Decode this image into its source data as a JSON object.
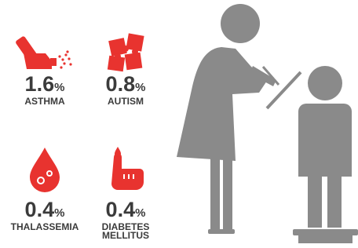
{
  "items": [
    {
      "value": "1.6",
      "unit": "%",
      "label": [
        "ASTHMA"
      ]
    },
    {
      "value": "0.8",
      "unit": "%",
      "label": [
        "AUTISM"
      ]
    },
    {
      "value": "0.4",
      "unit": "%",
      "label": [
        "THALASSEMIA"
      ]
    },
    {
      "value": "0.4",
      "unit": "%",
      "label": [
        "DIABETES",
        "MELLITUS"
      ]
    }
  ]
}
